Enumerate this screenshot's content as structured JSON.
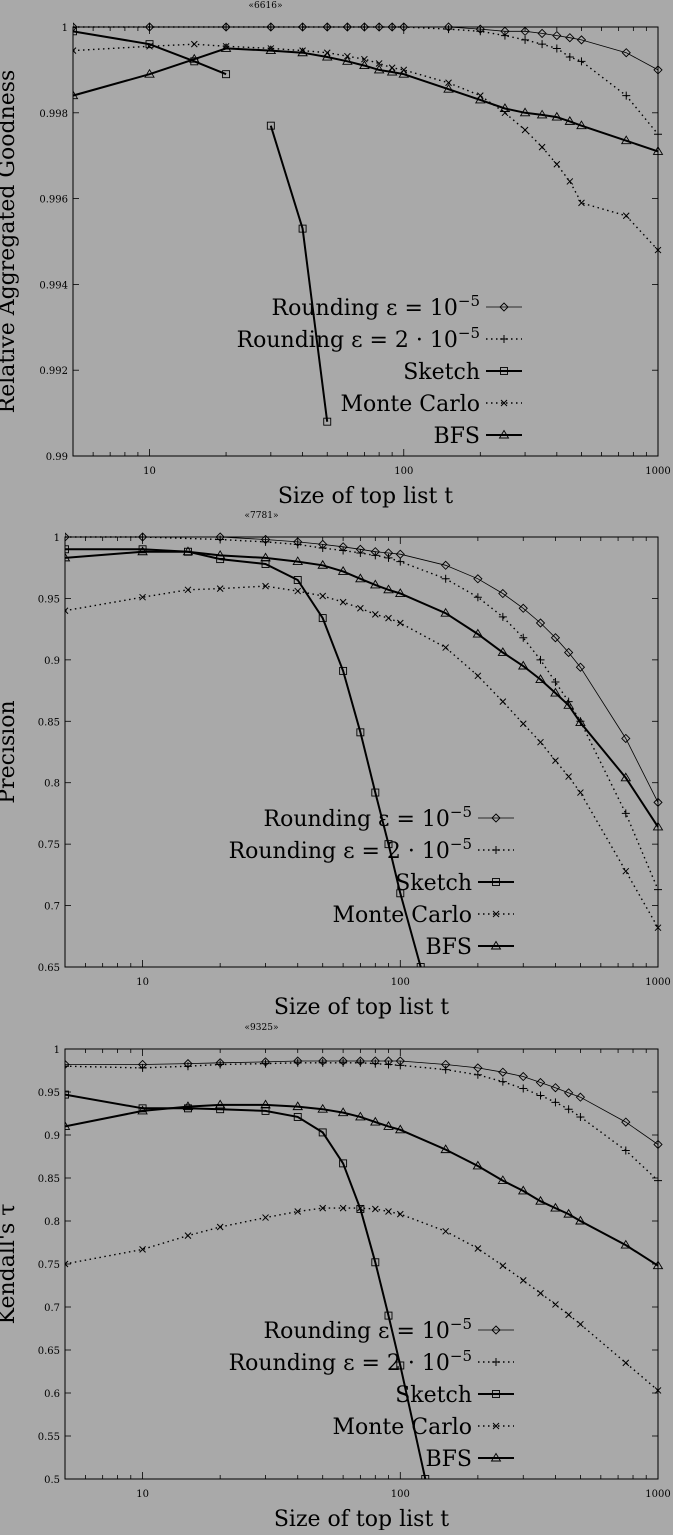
{
  "chart_data": [
    {
      "type": "line",
      "title": "«6616»",
      "xlabel": "Size of top list t",
      "ylabel": "Relative Aggregated Goodness",
      "xscale": "log",
      "xlim": [
        5,
        1000
      ],
      "ylim": [
        0.99,
        1.0
      ],
      "xticks": [
        10,
        100,
        1000
      ],
      "xtick_labels": [
        "10",
        "100",
        "1000"
      ],
      "yticks": [
        0.99,
        0.992,
        0.994,
        0.996,
        0.998,
        1.0
      ],
      "ytick_labels": [
        "0.99",
        "0.992",
        "0.994",
        "0.996",
        "0.998",
        "1"
      ],
      "legend_placement": "lower-center",
      "series": [
        {
          "name": "Rounding ε = 10⁻⁵",
          "marker": "diamond",
          "style": "solid-thin",
          "x": [
            5,
            10,
            20,
            30,
            40,
            50,
            60,
            70,
            80,
            90,
            100,
            150,
            200,
            250,
            300,
            350,
            400,
            450,
            500,
            750,
            1000
          ],
          "y": [
            1.0,
            1.0,
            1.0,
            1.0,
            1.0,
            1.0,
            1.0,
            1.0,
            1.0,
            1.0,
            1.0,
            1.0,
            0.99995,
            0.9999,
            0.9999,
            0.99985,
            0.9998,
            0.99975,
            0.9997,
            0.9994,
            0.999
          ]
        },
        {
          "name": "Rounding ε = 2 · 10⁻⁵",
          "marker": "plus",
          "style": "dotted",
          "x": [
            5,
            10,
            20,
            30,
            40,
            50,
            60,
            70,
            80,
            90,
            100,
            150,
            200,
            250,
            300,
            350,
            400,
            450,
            500,
            750,
            1000
          ],
          "y": [
            1.0,
            1.0,
            1.0,
            1.0,
            1.0,
            1.0,
            1.0,
            1.0,
            1.0,
            1.0,
            1.0,
            0.99995,
            0.9999,
            0.9998,
            0.9997,
            0.9996,
            0.9995,
            0.9993,
            0.9992,
            0.9984,
            0.9975
          ]
        },
        {
          "name": "Sketch",
          "marker": "square",
          "style": "solid-thick",
          "segmented": true,
          "x": [
            5,
            10,
            15,
            20,
            null,
            30,
            40,
            50
          ],
          "y": [
            0.9999,
            0.9996,
            0.9992,
            0.9989,
            null,
            0.9977,
            0.9953,
            0.9908
          ]
        },
        {
          "name": "Monte Carlo",
          "marker": "x",
          "style": "dotted",
          "x": [
            5,
            10,
            15,
            20,
            30,
            40,
            50,
            60,
            70,
            80,
            90,
            100,
            150,
            200,
            250,
            300,
            350,
            400,
            450,
            500,
            750,
            1000
          ],
          "y": [
            0.99945,
            0.99955,
            0.9996,
            0.99955,
            0.9995,
            0.99945,
            0.9994,
            0.99932,
            0.99925,
            0.99915,
            0.99905,
            0.999,
            0.9987,
            0.9984,
            0.998,
            0.9976,
            0.9972,
            0.9968,
            0.9964,
            0.9959,
            0.9956,
            0.9948
          ]
        },
        {
          "name": "BFS",
          "marker": "triangle",
          "style": "solid-thick",
          "x": [
            5,
            10,
            15,
            20,
            30,
            40,
            50,
            60,
            70,
            80,
            90,
            100,
            150,
            200,
            250,
            300,
            350,
            400,
            450,
            500,
            750,
            1000
          ],
          "y": [
            0.9984,
            0.9989,
            0.99925,
            0.9995,
            0.99945,
            0.9994,
            0.9993,
            0.9992,
            0.9991,
            0.999,
            0.99895,
            0.9989,
            0.99855,
            0.9983,
            0.9981,
            0.998,
            0.99795,
            0.9979,
            0.9978,
            0.9977,
            0.99735,
            0.9971
          ]
        }
      ]
    },
    {
      "type": "line",
      "title": "«7781»",
      "xlabel": "Size of top list t",
      "ylabel": "Precision",
      "xscale": "log",
      "xlim": [
        5,
        1000
      ],
      "ylim": [
        0.65,
        1.0
      ],
      "xticks": [
        10,
        100,
        1000
      ],
      "xtick_labels": [
        "10",
        "100",
        "1000"
      ],
      "yticks": [
        0.65,
        0.7,
        0.75,
        0.8,
        0.85,
        0.9,
        0.95,
        1.0
      ],
      "ytick_labels": [
        "0.65",
        "0.7",
        "0.75",
        "0.8",
        "0.85",
        "0.9",
        "0.95",
        "1"
      ],
      "legend_placement": "lower-center",
      "series": [
        {
          "name": "Rounding ε = 10⁻⁵",
          "marker": "diamond",
          "style": "solid-thin",
          "x": [
            5,
            10,
            20,
            30,
            40,
            50,
            60,
            70,
            80,
            90,
            100,
            150,
            200,
            250,
            300,
            350,
            400,
            450,
            500,
            750,
            1000
          ],
          "y": [
            1.0,
            1.0,
            1.0,
            0.998,
            0.996,
            0.994,
            0.992,
            0.99,
            0.988,
            0.987,
            0.986,
            0.977,
            0.966,
            0.954,
            0.942,
            0.93,
            0.918,
            0.906,
            0.894,
            0.836,
            0.784
          ]
        },
        {
          "name": "Rounding ε = 2 · 10⁻⁵",
          "marker": "plus",
          "style": "dotted",
          "x": [
            5,
            10,
            20,
            30,
            40,
            50,
            60,
            70,
            80,
            90,
            100,
            150,
            200,
            250,
            300,
            350,
            400,
            450,
            500,
            750,
            1000
          ],
          "y": [
            1.0,
            1.0,
            0.998,
            0.996,
            0.994,
            0.991,
            0.989,
            0.987,
            0.985,
            0.983,
            0.98,
            0.966,
            0.951,
            0.935,
            0.918,
            0.9,
            0.882,
            0.866,
            0.85,
            0.775,
            0.713
          ]
        },
        {
          "name": "Sketch",
          "marker": "square",
          "style": "solid-thick",
          "x": [
            5,
            10,
            15,
            20,
            30,
            40,
            50,
            60,
            70,
            80,
            90,
            100,
            120
          ],
          "y": [
            0.99,
            0.99,
            0.988,
            0.982,
            0.978,
            0.965,
            0.934,
            0.891,
            0.841,
            0.792,
            0.75,
            0.71,
            0.65
          ]
        },
        {
          "name": "Monte Carlo",
          "marker": "x",
          "style": "dotted",
          "x": [
            5,
            10,
            15,
            20,
            30,
            40,
            50,
            60,
            70,
            80,
            90,
            100,
            150,
            200,
            250,
            300,
            350,
            400,
            450,
            500,
            750,
            1000
          ],
          "y": [
            0.94,
            0.951,
            0.957,
            0.958,
            0.96,
            0.956,
            0.952,
            0.947,
            0.942,
            0.937,
            0.934,
            0.93,
            0.91,
            0.887,
            0.866,
            0.848,
            0.833,
            0.818,
            0.805,
            0.792,
            0.728,
            0.682
          ]
        },
        {
          "name": "BFS",
          "marker": "triangle",
          "style": "solid-thick",
          "x": [
            5,
            10,
            15,
            20,
            30,
            40,
            50,
            60,
            70,
            80,
            90,
            100,
            150,
            200,
            250,
            300,
            350,
            400,
            450,
            500,
            750,
            1000
          ],
          "y": [
            0.983,
            0.988,
            0.988,
            0.985,
            0.983,
            0.98,
            0.977,
            0.972,
            0.966,
            0.961,
            0.957,
            0.954,
            0.938,
            0.921,
            0.906,
            0.895,
            0.884,
            0.873,
            0.863,
            0.849,
            0.804,
            0.764
          ]
        }
      ]
    },
    {
      "type": "line",
      "title": "«9325»",
      "xlabel": "Size of top list t",
      "ylabel": "Kendall's τ",
      "xscale": "log",
      "xlim": [
        5,
        1000
      ],
      "ylim": [
        0.5,
        1.0
      ],
      "xticks": [
        10,
        100,
        1000
      ],
      "xtick_labels": [
        "10",
        "100",
        "1000"
      ],
      "yticks": [
        0.5,
        0.55,
        0.6,
        0.65,
        0.7,
        0.75,
        0.8,
        0.85,
        0.9,
        0.95,
        1.0
      ],
      "ytick_labels": [
        "0.5",
        "0.55",
        "0.6",
        "0.65",
        "0.7",
        "0.75",
        "0.8",
        "0.85",
        "0.9",
        "0.95",
        "1"
      ],
      "legend_placement": "lower-center",
      "series": [
        {
          "name": "Rounding ε = 10⁻⁵",
          "marker": "diamond",
          "style": "solid-thin",
          "x": [
            5,
            10,
            15,
            20,
            30,
            40,
            50,
            60,
            70,
            80,
            90,
            100,
            150,
            200,
            250,
            300,
            350,
            400,
            450,
            500,
            750,
            1000
          ],
          "y": [
            0.982,
            0.982,
            0.983,
            0.984,
            0.985,
            0.986,
            0.986,
            0.986,
            0.986,
            0.986,
            0.986,
            0.986,
            0.982,
            0.978,
            0.973,
            0.968,
            0.961,
            0.955,
            0.949,
            0.944,
            0.915,
            0.889
          ]
        },
        {
          "name": "Rounding ε = 2 · 10⁻⁵",
          "marker": "plus",
          "style": "dotted",
          "x": [
            5,
            10,
            15,
            20,
            30,
            40,
            50,
            60,
            70,
            80,
            90,
            100,
            150,
            200,
            250,
            300,
            350,
            400,
            450,
            500,
            750,
            1000
          ],
          "y": [
            0.98,
            0.978,
            0.98,
            0.982,
            0.983,
            0.984,
            0.984,
            0.984,
            0.984,
            0.983,
            0.982,
            0.981,
            0.976,
            0.97,
            0.962,
            0.954,
            0.946,
            0.938,
            0.93,
            0.921,
            0.882,
            0.847
          ]
        },
        {
          "name": "Sketch",
          "marker": "square",
          "style": "solid-thick",
          "x": [
            5,
            10,
            15,
            20,
            30,
            40,
            50,
            60,
            70,
            80,
            90,
            100,
            125
          ],
          "y": [
            0.947,
            0.931,
            0.931,
            0.93,
            0.928,
            0.921,
            0.903,
            0.867,
            0.814,
            0.752,
            0.69,
            0.632,
            0.5
          ]
        },
        {
          "name": "Monte Carlo",
          "marker": "x",
          "style": "dotted",
          "x": [
            5,
            10,
            15,
            20,
            30,
            40,
            50,
            60,
            70,
            80,
            90,
            100,
            150,
            200,
            250,
            300,
            350,
            400,
            450,
            500,
            750,
            1000
          ],
          "y": [
            0.75,
            0.767,
            0.783,
            0.793,
            0.804,
            0.811,
            0.815,
            0.815,
            0.815,
            0.814,
            0.811,
            0.808,
            0.788,
            0.768,
            0.748,
            0.731,
            0.716,
            0.703,
            0.691,
            0.68,
            0.635,
            0.603
          ]
        },
        {
          "name": "BFS",
          "marker": "triangle",
          "style": "solid-thick",
          "x": [
            5,
            10,
            15,
            20,
            30,
            40,
            50,
            60,
            70,
            80,
            90,
            100,
            150,
            200,
            250,
            300,
            350,
            400,
            450,
            500,
            750,
            1000
          ],
          "y": [
            0.91,
            0.928,
            0.933,
            0.935,
            0.935,
            0.933,
            0.93,
            0.926,
            0.921,
            0.915,
            0.91,
            0.906,
            0.883,
            0.864,
            0.847,
            0.835,
            0.823,
            0.815,
            0.808,
            0.8,
            0.772,
            0.748
          ]
        }
      ]
    }
  ]
}
